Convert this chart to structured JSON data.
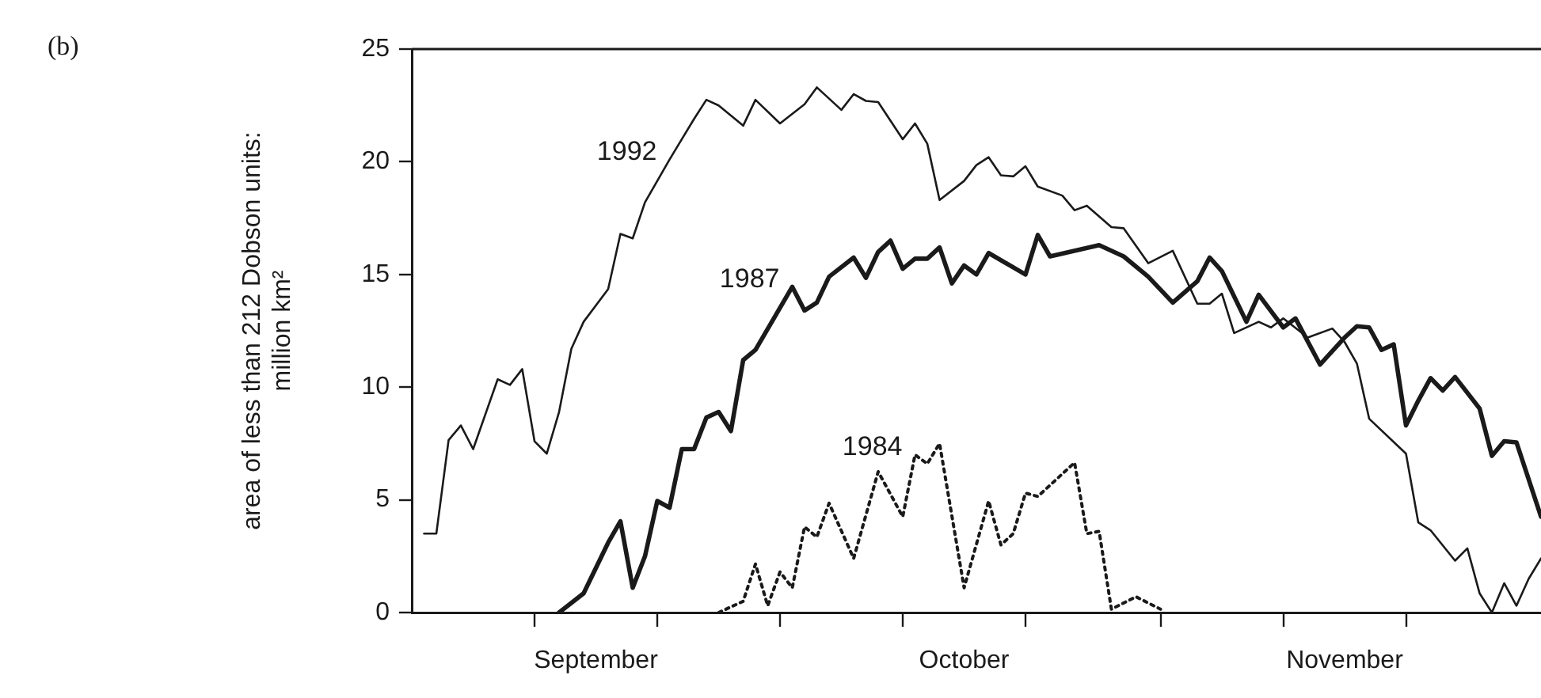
{
  "chart_data": {
    "type": "line",
    "ylabel": "area of less than 212 Dobson units:\nmillion km²",
    "annotations": [
      "(b)"
    ],
    "xlim": [
      "--09-01",
      "--12-02"
    ],
    "xticks": [
      {
        "value": "--09-11",
        "label": null
      },
      {
        "value": "--09-16",
        "label": "September"
      },
      {
        "value": "--09-21",
        "label": null
      },
      {
        "value": "--10-01",
        "label": null
      },
      {
        "value": "--10-11",
        "label": null
      },
      {
        "value": "--10-16",
        "label": "October"
      },
      {
        "value": "--10-21",
        "label": null
      },
      {
        "value": "--11-01",
        "label": null
      },
      {
        "value": "--11-11",
        "label": null
      },
      {
        "value": "--11-16",
        "label": "November"
      },
      {
        "value": "--11-21",
        "label": null
      }
    ],
    "ylim": [
      0,
      25
    ],
    "yticks": [
      0,
      5,
      10,
      15,
      20,
      25
    ],
    "grid": false,
    "legend": false,
    "marker": "none",
    "series": [
      {
        "name": "1992",
        "color": "#1a1a1a",
        "line_style": "solid",
        "x": [
          "--09-02",
          "--09-03",
          "--09-04",
          "--09-05",
          "--09-06",
          "--09-08",
          "--09-09",
          "--09-10",
          "--09-11",
          "--09-12",
          "--09-13",
          "--09-14",
          "--09-15",
          "--09-17",
          "--09-18",
          "--09-19",
          "--09-20",
          "--09-22",
          "--09-23",
          "--09-24",
          "--09-25",
          "--09-26",
          "--09-28",
          "--09-29",
          "--10-01",
          "--10-03",
          "--10-04",
          "--10-06",
          "--10-07",
          "--10-08",
          "--10-09",
          "--10-11",
          "--10-12",
          "--10-13",
          "--10-14",
          "--10-16",
          "--10-17",
          "--10-18",
          "--10-19",
          "--10-20",
          "--10-21",
          "--10-22",
          "--10-24",
          "--10-25",
          "--10-26",
          "--10-28",
          "--10-29",
          "--10-31",
          "--11-02",
          "--11-04",
          "--11-05",
          "--11-06",
          "--11-07",
          "--11-09",
          "--11-10",
          "--11-11",
          "--11-13",
          "--11-15",
          "--11-16",
          "--11-17",
          "--11-18",
          "--11-21",
          "--11-22",
          "--11-23",
          "--11-25",
          "--11-26",
          "--11-27",
          "--11-28",
          "--11-29",
          "--11-30",
          "--12-01",
          "--12-02"
        ],
        "values": [
          3.5,
          3.5,
          7.65,
          8.3,
          7.25,
          10.35,
          10.1,
          10.8,
          7.6,
          7.05,
          8.9,
          11.7,
          12.9,
          14.35,
          16.8,
          16.6,
          18.2,
          20.1,
          21,
          21.9,
          22.75,
          22.5,
          21.6,
          22.75,
          21.7,
          22.55,
          23.3,
          22.3,
          23,
          22.7,
          22.65,
          21,
          21.7,
          20.8,
          18.3,
          19.15,
          19.85,
          20.2,
          19.4,
          19.35,
          19.8,
          18.9,
          18.5,
          17.85,
          18.05,
          17.1,
          17.05,
          15.5,
          16.05,
          13.7,
          13.7,
          14.15,
          12.4,
          12.9,
          12.65,
          13.05,
          12.2,
          12.6,
          12,
          11.05,
          8.6,
          7.05,
          4,
          3.65,
          2.3,
          2.85,
          0.85,
          0,
          1.3,
          0.3,
          1.5,
          2.4
        ]
      },
      {
        "name": "1987",
        "color": "#1a1a1a",
        "line_style": "solid",
        "x": [
          "--09-13",
          "--09-15",
          "--09-17",
          "--09-18",
          "--09-19",
          "--09-20",
          "--09-21",
          "--09-22",
          "--09-23",
          "--09-24",
          "--09-25",
          "--09-26",
          "--09-27",
          "--09-28",
          "--09-29",
          "--10-02",
          "--10-03",
          "--10-04",
          "--10-05",
          "--10-07",
          "--10-08",
          "--10-09",
          "--10-10",
          "--10-11",
          "--10-12",
          "--10-13",
          "--10-14",
          "--10-15",
          "--10-16",
          "--10-17",
          "--10-18",
          "--10-21",
          "--10-22",
          "--10-23",
          "--10-27",
          "--10-29",
          "--10-31",
          "--11-02",
          "--11-04",
          "--11-05",
          "--11-06",
          "--11-08",
          "--11-09",
          "--11-11",
          "--11-12",
          "--11-14",
          "--11-16",
          "--11-17",
          "--11-18",
          "--11-19",
          "--11-20",
          "--11-21",
          "--11-22",
          "--11-23",
          "--11-24",
          "--11-25",
          "--11-27",
          "--11-28",
          "--11-29",
          "--11-30",
          "--12-02"
        ],
        "values": [
          0,
          0.85,
          3.1,
          4.05,
          1.1,
          2.5,
          4.95,
          4.65,
          7.25,
          7.25,
          8.65,
          8.9,
          8.05,
          11.2,
          11.65,
          14.45,
          13.4,
          13.75,
          14.9,
          15.75,
          14.85,
          16,
          16.5,
          15.25,
          15.7,
          15.7,
          16.2,
          14.6,
          15.4,
          15,
          15.95,
          15,
          16.75,
          15.8,
          16.3,
          15.8,
          14.9,
          13.75,
          14.7,
          15.75,
          15.15,
          12.9,
          14.1,
          12.65,
          13.05,
          11,
          12.2,
          12.7,
          12.65,
          11.65,
          11.9,
          8.3,
          9.4,
          10.4,
          9.85,
          10.45,
          9.05,
          6.95,
          7.6,
          7.55,
          4.25
        ]
      },
      {
        "name": "1984",
        "color": "#1a1a1a",
        "line_style": "dotted",
        "x": [
          "--09-26",
          "--09-28",
          "--09-29",
          "--09-30",
          "--10-01",
          "--10-02",
          "--10-03",
          "--10-04",
          "--10-05",
          "--10-07",
          "--10-09",
          "--10-11",
          "--10-12",
          "--10-13",
          "--10-14",
          "--10-16",
          "--10-18",
          "--10-19",
          "--10-20",
          "--10-21",
          "--10-22",
          "--10-25",
          "--10-26",
          "--10-27",
          "--10-28",
          "--10-30",
          "--11-01"
        ],
        "values": [
          0,
          0.5,
          2.15,
          0.3,
          1.8,
          1.1,
          3.8,
          3.35,
          4.85,
          2.4,
          6.25,
          4.25,
          7,
          6.6,
          7.5,
          1.1,
          4.95,
          3,
          3.5,
          5.3,
          5.15,
          6.65,
          3.5,
          3.6,
          0.15,
          0.7,
          0.15
        ]
      }
    ]
  }
}
